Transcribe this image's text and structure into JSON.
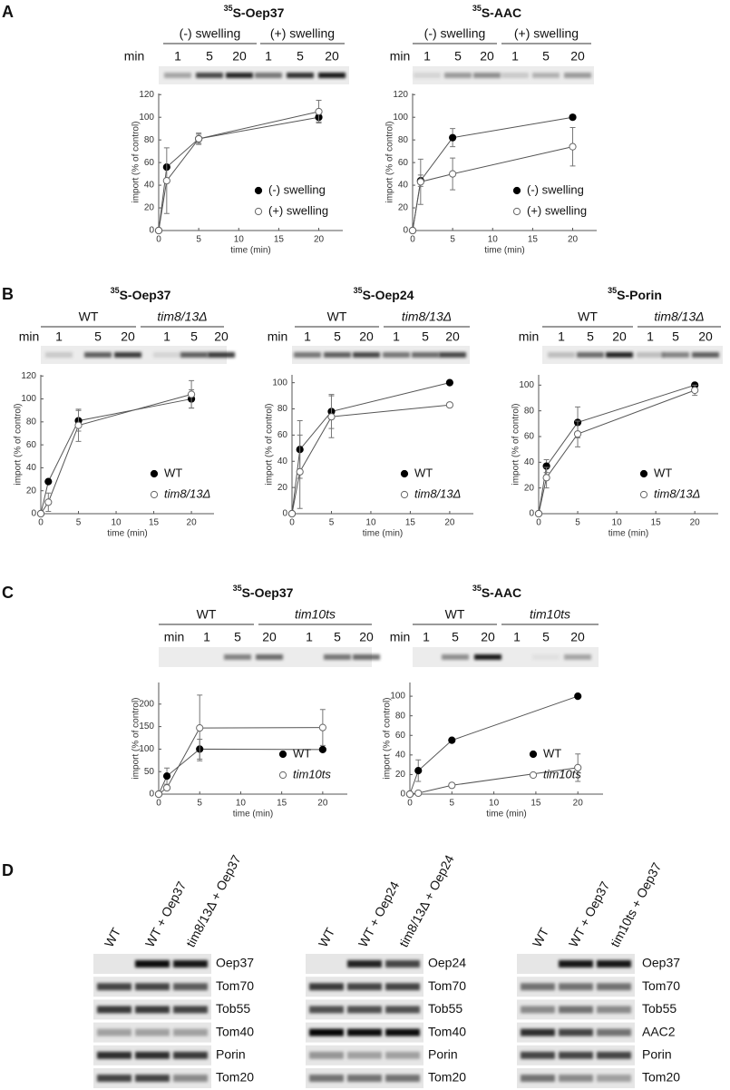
{
  "panel_labels": [
    "A",
    "B",
    "C",
    "D"
  ],
  "chart_data": [
    {
      "type": "line",
      "isotope": "35",
      "title": "S-Oep37",
      "gel": {
        "groups": [
          "(-) swelling",
          "(+) swelling"
        ],
        "unit": "min",
        "lanes": [
          1,
          5,
          20,
          1,
          5,
          20
        ]
      },
      "x_label": "time (min)",
      "y_label": "import (% of control)",
      "x": [
        0,
        1,
        5,
        20
      ],
      "xlim": [
        0,
        23
      ],
      "xticks": [
        0,
        5,
        10,
        15,
        20
      ],
      "ylim": [
        0,
        121
      ],
      "yticks": [
        0,
        20,
        40,
        60,
        80,
        100,
        120
      ],
      "legend": "lower right",
      "series": [
        {
          "name": "(-) swelling",
          "color": "#000000",
          "marker": "filled",
          "font_style": "normal",
          "values": [
            0,
            56,
            81,
            100
          ],
          "errors": [
            null,
            null,
            4,
            4
          ]
        },
        {
          "name": "(+) swelling",
          "color": "#666666",
          "marker": "open",
          "font_style": "normal",
          "values": [
            0,
            44,
            81,
            105
          ],
          "errors": [
            null,
            29,
            5,
            10
          ]
        }
      ]
    },
    {
      "type": "line",
      "isotope": "35",
      "title": "S-AAC",
      "gel": {
        "groups": [
          "(-) swelling",
          "(+) swelling"
        ],
        "unit": "min",
        "lanes": [
          1,
          5,
          20,
          1,
          5,
          20
        ]
      },
      "x_label": "time (min)",
      "y_label": "import (% of control)",
      "x": [
        0,
        1,
        5,
        20
      ],
      "xlim": [
        0,
        23
      ],
      "xticks": [
        0,
        5,
        10,
        15,
        20
      ],
      "ylim": [
        0,
        121
      ],
      "yticks": [
        0,
        20,
        40,
        60,
        80,
        100,
        120
      ],
      "legend": "lower right",
      "series": [
        {
          "name": "(-) swelling",
          "color": "#000000",
          "marker": "filled",
          "font_style": "normal",
          "values": [
            0,
            44,
            82,
            100
          ],
          "errors": [
            null,
            5,
            8,
            null
          ]
        },
        {
          "name": "(+) swelling",
          "color": "#666666",
          "marker": "open",
          "font_style": "normal",
          "values": [
            0,
            43,
            50,
            74
          ],
          "errors": [
            null,
            20,
            14,
            17
          ]
        }
      ]
    },
    {
      "type": "line",
      "isotope": "35",
      "title": "S-Oep37",
      "gel": {
        "groups": [
          "WT",
          "tim8/13Δ"
        ],
        "unit": "min",
        "lanes": [
          1,
          5,
          20,
          1,
          5,
          20
        ]
      },
      "x_label": "time (min)",
      "y_label": "import (% of control)",
      "x": [
        0,
        1,
        5,
        20
      ],
      "xlim": [
        0,
        23
      ],
      "xticks": [
        0,
        5,
        10,
        15,
        20
      ],
      "ylim": [
        0,
        121
      ],
      "yticks": [
        0,
        20,
        40,
        60,
        80,
        100,
        120
      ],
      "legend": "lower right",
      "series": [
        {
          "name": "WT",
          "color": "#000000",
          "marker": "filled",
          "font_style": "normal",
          "values": [
            0,
            28,
            81,
            100
          ],
          "errors": [
            null,
            null,
            9,
            8
          ]
        },
        {
          "name": "tim8/13Δ",
          "color": "#666666",
          "marker": "open",
          "font_style": "italic",
          "values": [
            0,
            10,
            77,
            104
          ],
          "errors": [
            null,
            8,
            14,
            12
          ]
        }
      ]
    },
    {
      "type": "line",
      "isotope": "35",
      "title": "S-Oep24",
      "gel": {
        "groups": [
          "WT",
          "tim8/13Δ"
        ],
        "unit": "min",
        "lanes": [
          1,
          5,
          20,
          1,
          5,
          20
        ]
      },
      "x_label": "time (min)",
      "y_label": "import (% of control)",
      "x": [
        0,
        1,
        5,
        20
      ],
      "xlim": [
        0,
        23
      ],
      "xticks": [
        0,
        5,
        10,
        15,
        20
      ],
      "ylim": [
        0,
        106
      ],
      "yticks": [
        0,
        20,
        40,
        60,
        80,
        100
      ],
      "legend": "lower right",
      "series": [
        {
          "name": "WT",
          "color": "#000000",
          "marker": "filled",
          "font_style": "normal",
          "values": [
            0,
            49,
            78,
            100
          ],
          "errors": [
            null,
            22,
            13,
            null
          ]
        },
        {
          "name": "tim8/13Δ",
          "color": "#666666",
          "marker": "open",
          "font_style": "italic",
          "values": [
            0,
            32,
            74,
            83
          ],
          "errors": [
            null,
            28,
            16,
            null
          ]
        }
      ]
    },
    {
      "type": "line",
      "isotope": "35",
      "title": "S-Porin",
      "gel": {
        "groups": [
          "WT",
          "tim8/13Δ"
        ],
        "unit": "min",
        "lanes": [
          1,
          5,
          20,
          1,
          5,
          20
        ]
      },
      "x_label": "time (min)",
      "y_label": "import (% of control)",
      "x": [
        0,
        1,
        5,
        20
      ],
      "xlim": [
        0,
        23
      ],
      "xticks": [
        0,
        5,
        10,
        15,
        20
      ],
      "ylim": [
        0,
        108
      ],
      "yticks": [
        0,
        20,
        40,
        60,
        80,
        100
      ],
      "legend": "lower right",
      "series": [
        {
          "name": "WT",
          "color": "#000000",
          "marker": "filled",
          "font_style": "normal",
          "values": [
            0,
            37,
            71,
            100
          ],
          "errors": [
            null,
            5,
            12,
            null
          ]
        },
        {
          "name": "tim8/13Δ",
          "color": "#666666",
          "marker": "open",
          "font_style": "italic",
          "values": [
            0,
            28,
            62,
            96
          ],
          "errors": [
            null,
            8,
            10,
            4
          ]
        }
      ]
    },
    {
      "type": "line",
      "isotope": "35",
      "title": "S-Oep37",
      "gel": {
        "groups": [
          "WT",
          "tim10ts"
        ],
        "unit": "min",
        "lanes": [
          1,
          5,
          20,
          1,
          5,
          20
        ]
      },
      "x_label": "time (min)",
      "y_label": "import (% of control)",
      "x": [
        0,
        1,
        5,
        20
      ],
      "xlim": [
        0,
        23
      ],
      "xticks": [
        0,
        5,
        10,
        15,
        20
      ],
      "ylim": [
        0,
        248
      ],
      "yticks": [
        0,
        50,
        100,
        150,
        200
      ],
      "legend": "lower right",
      "series": [
        {
          "name": "WT",
          "color": "#000000",
          "marker": "filled",
          "font_style": "normal",
          "values": [
            0,
            40,
            100,
            99
          ],
          "errors": [
            null,
            18,
            22,
            null
          ]
        },
        {
          "name": "tim10ts",
          "color": "#666666",
          "marker": "open",
          "font_style": "italic",
          "values": [
            0,
            14,
            147,
            148
          ],
          "errors": [
            null,
            null,
            73,
            40
          ]
        }
      ]
    },
    {
      "type": "line",
      "isotope": "35",
      "title": "S-AAC",
      "gel": {
        "groups": [
          "WT",
          "tim10ts"
        ],
        "unit": "min",
        "lanes": [
          1,
          5,
          20,
          1,
          5,
          20
        ]
      },
      "x_label": "time (min)",
      "y_label": "import (% of control)",
      "x": [
        0,
        1,
        5,
        20
      ],
      "xlim": [
        0,
        23
      ],
      "xticks": [
        0,
        5,
        10,
        15,
        20
      ],
      "ylim": [
        0,
        114
      ],
      "yticks": [
        0,
        20,
        40,
        60,
        80,
        100
      ],
      "legend": "lower right",
      "series": [
        {
          "name": "WT",
          "color": "#000000",
          "marker": "filled",
          "font_style": "normal",
          "values": [
            0,
            24,
            55,
            100
          ],
          "errors": [
            null,
            11,
            null,
            null
          ]
        },
        {
          "name": "tim10ts",
          "color": "#666666",
          "marker": "open",
          "font_style": "italic",
          "values": [
            0,
            1,
            9,
            27
          ],
          "errors": [
            null,
            null,
            null,
            14
          ]
        }
      ]
    }
  ],
  "blots": [
    {
      "lanes": [
        "WT",
        "WT + Oep37",
        "tim8/13Δ + Oep37"
      ],
      "proteins": [
        "Oep37",
        "Tom70",
        "Tob55",
        "Tom40",
        "Porin",
        "Tom20"
      ]
    },
    {
      "lanes": [
        "WT",
        "WT + Oep24",
        "tim8/13Δ + Oep24"
      ],
      "proteins": [
        "Oep24",
        "Tom70",
        "Tob55",
        "Tom40",
        "Porin",
        "Tom20"
      ]
    },
    {
      "lanes": [
        "WT",
        "WT + Oep37",
        "tim10ts + Oep37"
      ],
      "proteins": [
        "Oep37",
        "Tom70",
        "Tob55",
        "AAC2",
        "Porin",
        "Tom20"
      ]
    }
  ]
}
